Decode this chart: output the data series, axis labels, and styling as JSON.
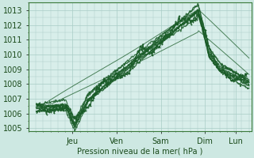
{
  "ylabel": "Pression niveau de la mer( hPa )",
  "ylim": [
    1004.8,
    1013.5
  ],
  "yticks": [
    1005,
    1006,
    1007,
    1008,
    1009,
    1010,
    1011,
    1012,
    1013
  ],
  "bg_color": "#cde8e2",
  "plot_bg_color": "#d8eeea",
  "grid_color": "#a8ccc6",
  "line_color": "#1a5c28",
  "day_labels": [
    "Jeu",
    "Ven",
    "Sam",
    "Dim",
    "Lun"
  ],
  "day_positions": [
    1.0,
    2.0,
    3.0,
    4.0,
    4.7
  ],
  "xmin": 0.0,
  "xmax": 5.05
}
